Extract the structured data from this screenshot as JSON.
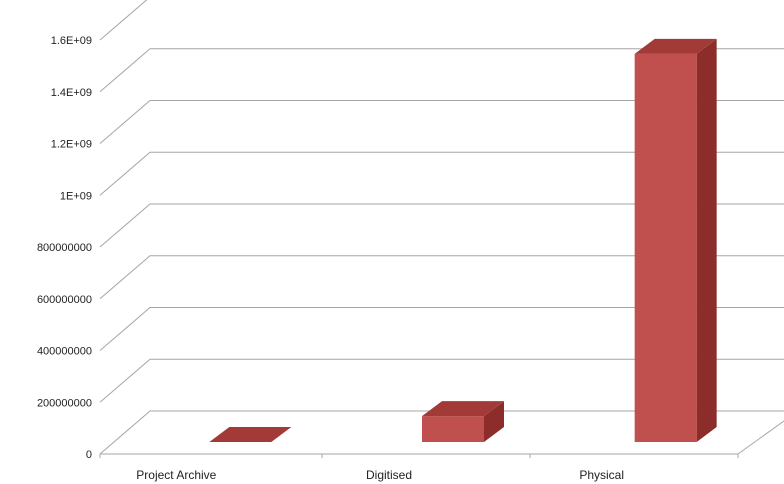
{
  "chart_data": {
    "type": "bar",
    "categories": [
      "Project Archive",
      "Digitised",
      "Physical"
    ],
    "values": [
      0,
      100000000,
      1500000000
    ],
    "ylim": [
      0,
      1600000000
    ],
    "yticks": [
      0,
      200000000,
      400000000,
      600000000,
      800000000,
      1000000000,
      1200000000,
      1400000000,
      1600000000
    ],
    "ytick_labels": [
      "0",
      "200000000",
      "400000000",
      "600000000",
      "800000000",
      "1E+09",
      "1.2E+09",
      "1.4E+09",
      "1.6E+09"
    ],
    "grid": true,
    "legend": "none",
    "colors": {
      "bar_front": "#c0504d",
      "bar_side": "#8c2d2b",
      "bar_top": "#a23a37",
      "grid": "#a6a6a6"
    }
  }
}
